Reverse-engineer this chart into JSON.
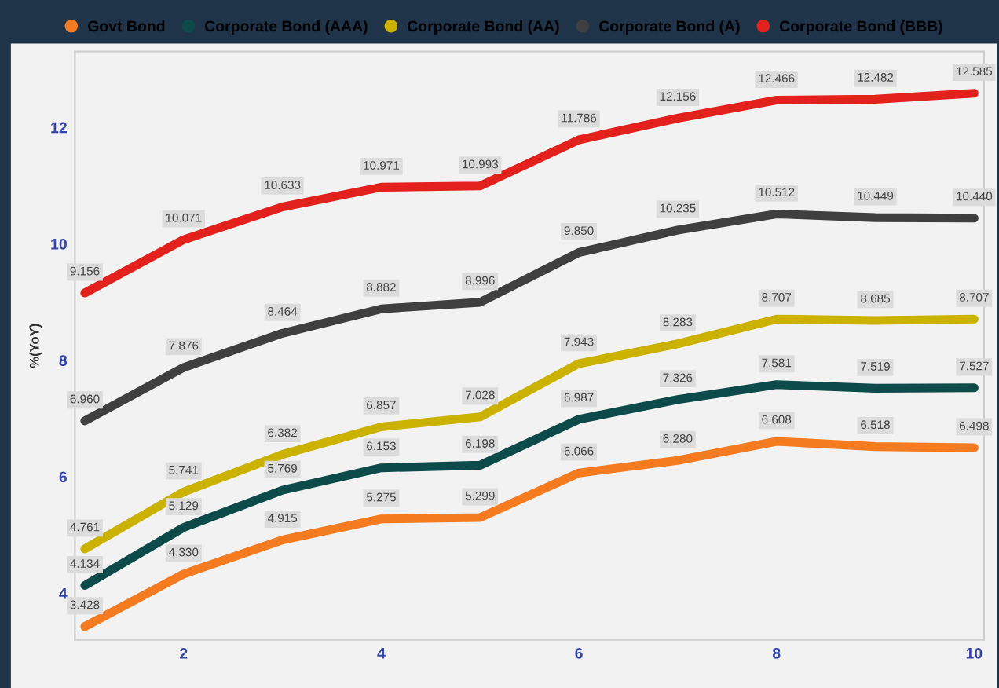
{
  "chart_data": {
    "type": "line",
    "ylabel": "%(YoY)",
    "x": [
      1,
      2,
      3,
      4,
      5,
      6,
      7,
      8,
      9,
      10
    ],
    "xlim": [
      0.9,
      10.1
    ],
    "xticks": [
      2,
      4,
      6,
      8,
      10
    ],
    "ylim": [
      3.2,
      13.3
    ],
    "yticks": [
      4,
      6,
      8,
      10,
      12
    ],
    "grid": false,
    "legend": "top",
    "marker": "none",
    "line_style": "solid",
    "series": [
      {
        "name": "Govt Bond",
        "color": "#f47b20",
        "values": [
          3.428,
          4.33,
          4.915,
          5.275,
          5.299,
          6.066,
          6.28,
          6.608,
          6.518,
          6.498
        ],
        "value_labels": [
          "3.428",
          "4.330",
          "4.915",
          "5.275",
          "5.299",
          "6.066",
          "6.280",
          "6.608",
          "6.518",
          "6.498"
        ]
      },
      {
        "name": "Corporate Bond (AAA)",
        "color": "#0d4a4a",
        "values": [
          4.134,
          5.129,
          5.769,
          6.153,
          6.198,
          6.987,
          7.326,
          7.581,
          7.519,
          7.527
        ],
        "value_labels": [
          "4.134",
          "5.129",
          "5.769",
          "6.153",
          "6.198",
          "6.987",
          "7.326",
          "7.581",
          "7.519",
          "7.527"
        ]
      },
      {
        "name": "Corporate Bond (AA)",
        "color": "#cbb200",
        "values": [
          4.761,
          5.741,
          6.382,
          6.857,
          7.028,
          7.943,
          8.283,
          8.707,
          8.685,
          8.707
        ],
        "value_labels": [
          "4.761",
          "5.741",
          "6.382",
          "6.857",
          "7.028",
          "7.943",
          "8.283",
          "8.707",
          "8.685",
          "8.707"
        ]
      },
      {
        "name": "Corporate Bond (A)",
        "color": "#3f3f3f",
        "values": [
          6.96,
          7.876,
          8.464,
          8.882,
          8.996,
          9.85,
          10.235,
          10.512,
          10.449,
          10.44
        ],
        "value_labels": [
          "6.960",
          "7.876",
          "8.464",
          "8.882",
          "8.996",
          "9.850",
          "10.235",
          "10.512",
          "10.449",
          "10.440"
        ]
      },
      {
        "name": "Corporate Bond (BBB)",
        "color": "#e2201c",
        "values": [
          9.156,
          10.071,
          10.633,
          10.971,
          10.993,
          11.786,
          12.156,
          12.466,
          12.482,
          12.585
        ],
        "value_labels": [
          "9.156",
          "10.071",
          "10.633",
          "10.971",
          "10.993",
          "11.786",
          "12.156",
          "12.466",
          "12.482",
          "12.585"
        ]
      }
    ]
  }
}
